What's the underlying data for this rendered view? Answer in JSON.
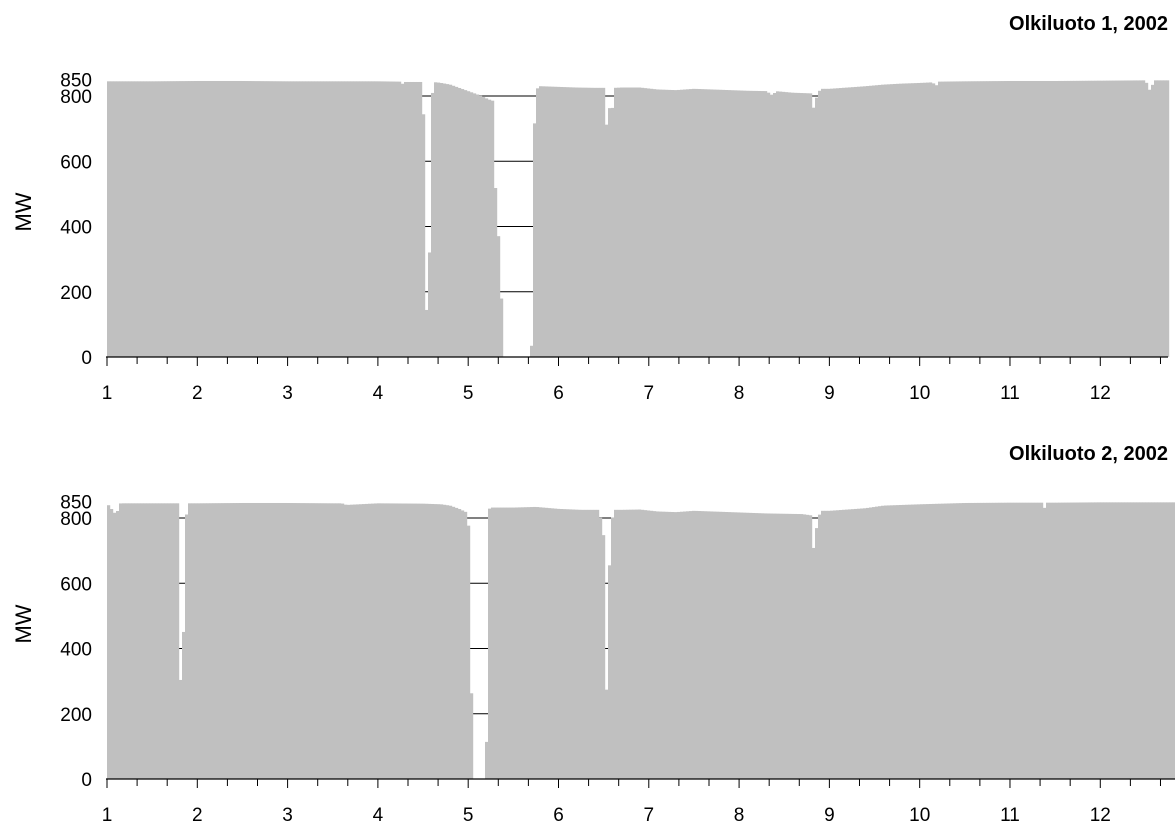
{
  "chart_data": [
    {
      "type": "area",
      "title": "Olkiluoto 1, 2002",
      "ylabel": "MW",
      "xlabel": "",
      "ylim": [
        0,
        850
      ],
      "yticks": [
        0,
        200,
        400,
        600,
        800,
        850
      ],
      "xlim": [
        1,
        12.75
      ],
      "xticks": [
        "1",
        "2",
        "3",
        "4",
        "5",
        "6",
        "7",
        "8",
        "9",
        "10",
        "11",
        "12"
      ],
      "grid": "horizontal",
      "bar_color": "#c0c0c0",
      "series": [
        {
          "x": [
            1.0,
            1.2,
            1.5,
            2.0,
            2.5,
            3.0,
            3.5,
            4.0,
            4.25,
            4.26,
            4.3,
            4.45,
            4.5,
            4.52,
            4.53,
            4.54,
            4.55,
            4.57,
            4.6,
            4.61,
            4.65,
            4.7,
            4.8,
            4.9,
            5.0,
            5.1,
            5.2,
            5.25,
            5.28,
            5.3,
            5.31,
            5.4,
            5.5,
            5.6,
            5.7,
            5.72,
            5.75,
            5.8,
            6.0,
            6.2,
            6.4,
            6.5,
            6.52,
            6.55,
            6.58,
            6.6,
            6.62,
            6.7,
            6.9,
            7.1,
            7.3,
            7.5,
            7.7,
            7.9,
            8.1,
            8.3,
            8.38,
            8.4,
            8.6,
            8.8,
            8.82,
            8.85,
            8.9,
            9.0,
            9.2,
            9.4,
            9.6,
            9.8,
            10.0,
            10.15,
            10.17,
            10.2,
            10.5,
            11.0,
            11.5,
            12.0,
            12.5,
            12.55,
            12.6,
            12.75
          ],
          "y": [
            845,
            845,
            845,
            846,
            846,
            845,
            845,
            845,
            844,
            835,
            843,
            843,
            843,
            452,
            843,
            0,
            0,
            296,
            780,
            842,
            842,
            840,
            835,
            825,
            815,
            805,
            793,
            787,
            785,
            518,
            518,
            0,
            0,
            0,
            0,
            621,
            820,
            830,
            828,
            826,
            825,
            825,
            640,
            825,
            700,
            770,
            825,
            826,
            826,
            820,
            818,
            822,
            820,
            818,
            816,
            815,
            800,
            815,
            810,
            808,
            760,
            790,
            822,
            822,
            826,
            830,
            835,
            838,
            840,
            842,
            820,
            844,
            845,
            846,
            846,
            847,
            848,
            816,
            848,
            848
          ]
        }
      ]
    },
    {
      "type": "area",
      "title": "Olkiluoto 2, 2002",
      "ylabel": "MW",
      "xlabel": "",
      "ylim": [
        0,
        850
      ],
      "yticks": [
        0,
        200,
        400,
        600,
        800,
        850
      ],
      "xlim": [
        1,
        12.75
      ],
      "xticks": [
        "1",
        "2",
        "3",
        "4",
        "5",
        "6",
        "7",
        "8",
        "9",
        "10",
        "11",
        "12"
      ],
      "grid": "horizontal",
      "bar_color": "#c0c0c0",
      "series": [
        {
          "x": [
            1.0,
            1.1,
            1.15,
            1.3,
            1.5,
            1.8,
            1.82,
            1.85,
            1.88,
            1.9,
            2.0,
            2.5,
            3.0,
            3.5,
            3.6,
            3.65,
            4.0,
            4.5,
            4.7,
            4.8,
            4.9,
            5.0,
            5.02,
            5.05,
            5.1,
            5.2,
            5.22,
            5.25,
            5.5,
            5.75,
            6.0,
            6.25,
            6.45,
            6.5,
            6.52,
            6.55,
            6.58,
            6.6,
            6.62,
            6.65,
            6.7,
            6.9,
            7.1,
            7.3,
            7.5,
            7.7,
            7.9,
            8.1,
            8.3,
            8.5,
            8.7,
            8.8,
            8.82,
            8.85,
            8.9,
            9.0,
            9.2,
            9.4,
            9.6,
            9.8,
            10.0,
            10.5,
            11.0,
            11.35,
            11.37,
            11.4,
            11.5,
            12.0,
            12.75
          ],
          "y": [
            845,
            810,
            845,
            845,
            845,
            845,
            70,
            490,
            810,
            845,
            845,
            846,
            846,
            845,
            845,
            840,
            845,
            844,
            842,
            838,
            828,
            815,
            590,
            0,
            0,
            0,
            825,
            832,
            832,
            834,
            828,
            825,
            825,
            745,
            40,
            640,
            670,
            815,
            825,
            825,
            825,
            826,
            820,
            818,
            822,
            820,
            818,
            816,
            814,
            813,
            812,
            808,
            700,
            760,
            822,
            822,
            826,
            830,
            838,
            840,
            842,
            846,
            847,
            847,
            820,
            847,
            847,
            848,
            848
          ]
        }
      ]
    }
  ]
}
